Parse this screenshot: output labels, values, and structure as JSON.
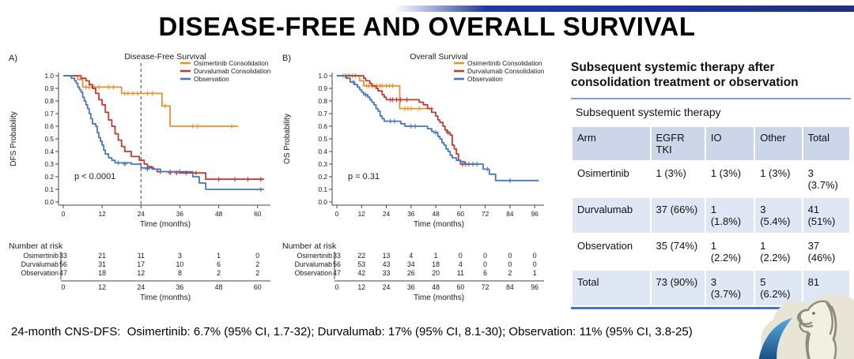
{
  "title": "DISEASE-FREE AND OVERALL SURVIVAL",
  "footnote": "24-month CNS-DFS:  Osimertinib: 6.7% (95% CI, 1.7-32); Durvalumab: 17% (95% CI, 8.1-30); Observation: 11% (95% CI, 3.8-25)",
  "colors": {
    "osimertinib": "#e8912d",
    "durvalumab": "#be3a34",
    "observation": "#4678b8",
    "axis": "#444444",
    "banner_blue": "#1c339b",
    "table_header_bg": "#cbd7e9",
    "table_alt_row_bg": "#dee7f3",
    "table_border_blue": "#4472c4"
  },
  "chart_data": [
    {
      "type": "line",
      "subtype": "kaplan-meier",
      "panel_label": "A)",
      "title": "Disease-Free Survival",
      "xlabel": "Time (months)",
      "ylabel": "DFS Probability",
      "xlim": [
        0,
        63
      ],
      "xticks": [
        0,
        12,
        24,
        36,
        48,
        60
      ],
      "yticks": [
        0.0,
        0.1,
        0.2,
        0.3,
        0.4,
        0.5,
        0.6,
        0.7,
        0.8,
        0.9,
        1.0
      ],
      "pvalue": "p < 0.0001",
      "dashed_vline_x": 24,
      "legend_position": "top-right",
      "series": [
        {
          "name": "Osimertinib Consolidation",
          "color_key": "osimertinib",
          "steps": [
            [
              0,
              1.0
            ],
            [
              4.5,
              0.97
            ],
            [
              6,
              0.91
            ],
            [
              18,
              0.86
            ],
            [
              30.5,
              0.76
            ],
            [
              33,
              0.6
            ],
            [
              54,
              0.6
            ]
          ],
          "censors": [
            [
              7,
              0.91
            ],
            [
              8,
              0.91
            ],
            [
              9.5,
              0.91
            ],
            [
              11,
              0.91
            ],
            [
              14,
              0.91
            ],
            [
              15.5,
              0.91
            ],
            [
              19,
              0.86
            ],
            [
              20,
              0.86
            ],
            [
              21.5,
              0.86
            ],
            [
              23,
              0.86
            ],
            [
              26,
              0.86
            ],
            [
              27.5,
              0.86
            ],
            [
              31.5,
              0.76
            ],
            [
              40,
              0.6
            ],
            [
              41.5,
              0.6
            ],
            [
              52,
              0.6
            ]
          ]
        },
        {
          "name": "Durvalumab Consolidation",
          "color_key": "durvalumab",
          "steps": [
            [
              0,
              1.0
            ],
            [
              5.5,
              0.98
            ],
            [
              7,
              0.96
            ],
            [
              8,
              0.93
            ],
            [
              9,
              0.9
            ],
            [
              10,
              0.86
            ],
            [
              11,
              0.81
            ],
            [
              12,
              0.77
            ],
            [
              13,
              0.71
            ],
            [
              14,
              0.65
            ],
            [
              15,
              0.6
            ],
            [
              16,
              0.54
            ],
            [
              17,
              0.49
            ],
            [
              18,
              0.44
            ],
            [
              19,
              0.4
            ],
            [
              21,
              0.36
            ],
            [
              23.5,
              0.33
            ],
            [
              25,
              0.3
            ],
            [
              26,
              0.28
            ],
            [
              27.5,
              0.26
            ],
            [
              29,
              0.24
            ],
            [
              36,
              0.23
            ],
            [
              44,
              0.18
            ],
            [
              62,
              0.18
            ]
          ],
          "censors": [
            [
              30,
              0.24
            ],
            [
              33,
              0.23
            ],
            [
              35,
              0.23
            ],
            [
              38,
              0.23
            ],
            [
              41,
              0.23
            ],
            [
              48,
              0.18
            ],
            [
              53,
              0.18
            ],
            [
              57,
              0.18
            ],
            [
              61,
              0.18
            ]
          ]
        },
        {
          "name": "Observation",
          "color_key": "observation",
          "steps": [
            [
              0,
              1.0
            ],
            [
              2.5,
              0.98
            ],
            [
              3.5,
              0.96
            ],
            [
              4,
              0.94
            ],
            [
              4.5,
              0.91
            ],
            [
              5,
              0.89
            ],
            [
              5.5,
              0.87
            ],
            [
              6,
              0.83
            ],
            [
              6.5,
              0.8
            ],
            [
              7,
              0.77
            ],
            [
              7.5,
              0.74
            ],
            [
              8,
              0.7
            ],
            [
              8.5,
              0.66
            ],
            [
              9,
              0.62
            ],
            [
              10,
              0.6
            ],
            [
              10.5,
              0.55
            ],
            [
              11,
              0.51
            ],
            [
              11.5,
              0.48
            ],
            [
              12,
              0.45
            ],
            [
              12.5,
              0.41
            ],
            [
              13,
              0.38
            ],
            [
              14,
              0.35
            ],
            [
              15,
              0.33
            ],
            [
              16,
              0.31
            ],
            [
              21,
              0.3
            ],
            [
              24,
              0.27
            ],
            [
              28,
              0.26
            ],
            [
              30,
              0.24
            ],
            [
              40,
              0.2
            ],
            [
              42,
              0.15
            ],
            [
              44,
              0.1
            ],
            [
              62,
              0.1
            ]
          ],
          "censors": [
            [
              17,
              0.31
            ],
            [
              19,
              0.3
            ],
            [
              26,
              0.26
            ],
            [
              33,
              0.24
            ],
            [
              36,
              0.24
            ],
            [
              61,
              0.1
            ]
          ]
        }
      ],
      "risk_table": {
        "heading": "Number at risk",
        "xticks": [
          0,
          12,
          24,
          36,
          48,
          60
        ],
        "xlabel": "Time (months)",
        "rows": [
          {
            "label": "Osimertinib",
            "values": [
              33,
              21,
              11,
              3,
              1,
              0
            ]
          },
          {
            "label": "Durvalumab",
            "values": [
              56,
              31,
              17,
              10,
              6,
              2
            ]
          },
          {
            "label": "Observation",
            "values": [
              47,
              18,
              12,
              8,
              2,
              2
            ]
          }
        ]
      }
    },
    {
      "type": "line",
      "subtype": "kaplan-meier",
      "panel_label": "B)",
      "title": "Overall Survival",
      "xlabel": "Time (months)",
      "ylabel": "OS Probability",
      "xlim": [
        0,
        99
      ],
      "xticks": [
        0,
        12,
        24,
        36,
        48,
        60,
        72,
        84,
        96
      ],
      "yticks": [
        0.0,
        0.1,
        0.2,
        0.3,
        0.4,
        0.5,
        0.6,
        0.7,
        0.8,
        0.9,
        1.0
      ],
      "pvalue": "p = 0.31",
      "dashed_vline_x": null,
      "legend_position": "top-right",
      "series": [
        {
          "name": "Osimertinib Consolidation",
          "color_key": "osimertinib",
          "steps": [
            [
              0,
              1.0
            ],
            [
              11,
              0.96
            ],
            [
              13,
              0.92
            ],
            [
              30.5,
              0.74
            ],
            [
              46,
              0.74
            ]
          ],
          "censors": [
            [
              3,
              1.0
            ],
            [
              4,
              1.0
            ],
            [
              5,
              1.0
            ],
            [
              6,
              1.0
            ],
            [
              7.5,
              1.0
            ],
            [
              9,
              1.0
            ],
            [
              14.5,
              0.92
            ],
            [
              15.5,
              0.92
            ],
            [
              17,
              0.92
            ],
            [
              18,
              0.92
            ],
            [
              19.5,
              0.92
            ],
            [
              21,
              0.92
            ],
            [
              22,
              0.92
            ],
            [
              24,
              0.92
            ],
            [
              25.5,
              0.92
            ],
            [
              27,
              0.92
            ],
            [
              33,
              0.74
            ],
            [
              34.5,
              0.74
            ],
            [
              36,
              0.74
            ],
            [
              40,
              0.74
            ],
            [
              46,
              0.74
            ]
          ]
        },
        {
          "name": "Durvalumab Consolidation",
          "color_key": "durvalumab",
          "steps": [
            [
              0,
              1.0
            ],
            [
              13,
              0.98
            ],
            [
              14,
              0.96
            ],
            [
              16,
              0.94
            ],
            [
              17,
              0.92
            ],
            [
              19,
              0.9
            ],
            [
              20,
              0.88
            ],
            [
              22,
              0.85
            ],
            [
              23,
              0.83
            ],
            [
              24,
              0.81
            ],
            [
              40,
              0.79
            ],
            [
              42,
              0.77
            ],
            [
              44,
              0.74
            ],
            [
              46,
              0.71
            ],
            [
              48,
              0.68
            ],
            [
              49,
              0.65
            ],
            [
              50,
              0.63
            ],
            [
              51.5,
              0.6
            ],
            [
              52.5,
              0.57
            ],
            [
              53.5,
              0.55
            ],
            [
              55,
              0.53
            ],
            [
              56,
              0.45
            ],
            [
              57,
              0.42
            ],
            [
              58,
              0.38
            ],
            [
              59,
              0.33
            ],
            [
              60,
              0.3
            ],
            [
              68,
              0.3
            ]
          ],
          "censors": [
            [
              26,
              0.81
            ],
            [
              27,
              0.81
            ],
            [
              29,
              0.81
            ],
            [
              31,
              0.81
            ],
            [
              34,
              0.81
            ],
            [
              54,
              0.55
            ],
            [
              61,
              0.3
            ],
            [
              62.5,
              0.3
            ],
            [
              64,
              0.3
            ],
            [
              66,
              0.3
            ]
          ]
        },
        {
          "name": "Observation",
          "color_key": "observation",
          "steps": [
            [
              0,
              1.0
            ],
            [
              4.5,
              0.98
            ],
            [
              6.5,
              0.95
            ],
            [
              8.5,
              0.93
            ],
            [
              10,
              0.91
            ],
            [
              11,
              0.89
            ],
            [
              12,
              0.87
            ],
            [
              13,
              0.85
            ],
            [
              15,
              0.83
            ],
            [
              16,
              0.81
            ],
            [
              17,
              0.79
            ],
            [
              18,
              0.77
            ],
            [
              19,
              0.74
            ],
            [
              20,
              0.72
            ],
            [
              21,
              0.68
            ],
            [
              22,
              0.66
            ],
            [
              23,
              0.64
            ],
            [
              31,
              0.62
            ],
            [
              33,
              0.6
            ],
            [
              44,
              0.58
            ],
            [
              46,
              0.56
            ],
            [
              47,
              0.55
            ],
            [
              49,
              0.52
            ],
            [
              50,
              0.5
            ],
            [
              51,
              0.47
            ],
            [
              52,
              0.45
            ],
            [
              53,
              0.42
            ],
            [
              54,
              0.4
            ],
            [
              55,
              0.37
            ],
            [
              56,
              0.35
            ],
            [
              58,
              0.33
            ],
            [
              60,
              0.32
            ],
            [
              62,
              0.3
            ],
            [
              71,
              0.26
            ],
            [
              74,
              0.22
            ],
            [
              77,
              0.17
            ],
            [
              98,
              0.17
            ]
          ],
          "censors": [
            [
              8,
              0.95
            ],
            [
              14,
              0.85
            ],
            [
              26,
              0.64
            ],
            [
              28,
              0.64
            ],
            [
              36,
              0.6
            ],
            [
              38,
              0.6
            ],
            [
              48,
              0.55
            ],
            [
              66,
              0.3
            ],
            [
              68,
              0.3
            ],
            [
              73,
              0.26
            ],
            [
              84,
              0.17
            ]
          ]
        }
      ],
      "risk_table": {
        "heading": "Number at risk",
        "xticks": [
          0,
          12,
          24,
          36,
          48,
          60,
          72,
          84,
          96
        ],
        "xlabel": "Time (months)",
        "rows": [
          {
            "label": "Osimertinib",
            "values": [
              33,
              22,
              13,
              4,
              1,
              0,
              0,
              0,
              0
            ]
          },
          {
            "label": "Durvalumab",
            "values": [
              56,
              53,
              43,
              34,
              18,
              4,
              0,
              0,
              0
            ]
          },
          {
            "label": "Observation",
            "values": [
              47,
              42,
              33,
              26,
              20,
              11,
              6,
              2,
              1
            ]
          }
        ]
      }
    }
  ],
  "side_table": {
    "title": "Subsequent systemic therapy after consolidation treatment or observation",
    "subheader": "Subsequent systemic therapy",
    "columns": [
      "Arm",
      "EGFR TKI",
      "IO",
      "Other",
      "Total"
    ],
    "rows": [
      {
        "arm": "Osimertinib",
        "cells": [
          "1 (3%)",
          "1 (3%)",
          "1 (3%)",
          "3 (3.7%)"
        ]
      },
      {
        "arm": "Durvalumab",
        "cells": [
          "37 (66%)",
          "1 (1.8%)",
          "3 (5.4%)",
          "41 (51%)"
        ]
      },
      {
        "arm": "Observation",
        "cells": [
          "35 (74%)",
          "1 (2.2%)",
          "1 (2.2%)",
          "37 (46%)"
        ]
      },
      {
        "arm": "Total",
        "cells": [
          "73 (90%)",
          "3 (3.7%)",
          "5 (6.2%)",
          "81"
        ]
      }
    ]
  }
}
